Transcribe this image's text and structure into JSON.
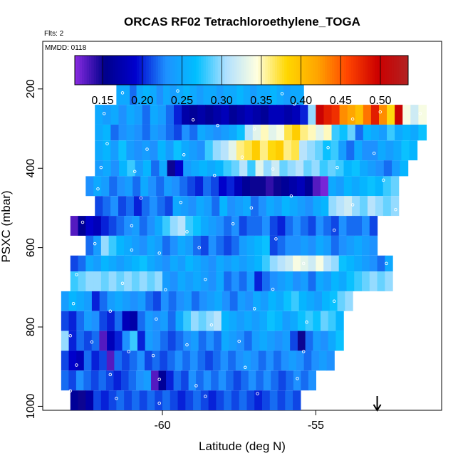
{
  "chart_data": {
    "type": "heatmap",
    "title": "ORCAS RF02 Tetrachloroethylene_TOGA",
    "note_flts": "Flts: 2",
    "note_mmdd": "MMDD: 0118",
    "xlabel": "Latitude (deg N)",
    "ylabel": "PSXC (mbar)",
    "xlim": [
      -63.9,
      -50.9
    ],
    "ylim": [
      1010,
      80
    ],
    "x_ticks": [
      -60,
      -55
    ],
    "x_tick_labels": [
      "-60",
      "-55"
    ],
    "y_ticks": [
      200,
      400,
      600,
      800,
      1000
    ],
    "y_tick_labels": [
      "200",
      "400",
      "600",
      "800",
      "1000"
    ],
    "colorbar": {
      "min": 0.115,
      "max": 0.535,
      "ticks": [
        0.15,
        0.2,
        0.25,
        0.3,
        0.35,
        0.4,
        0.45,
        0.5
      ],
      "tick_labels": [
        "0.15",
        "0.20",
        "0.25",
        "0.30",
        "0.35",
        "0.40",
        "0.45",
        "0.50"
      ],
      "colors": [
        "#8a2be2",
        "#00008b",
        "#0000cd",
        "#1e90ff",
        "#00bfff",
        "#b0e0ff",
        "#ffffe0",
        "#ffd700",
        "#ffa500",
        "#ff4500",
        "#cc0000",
        "#b22222"
      ]
    },
    "arrow_latitude": -53.0,
    "rows": [
      {
        "p_top": 190,
        "p_bot": 240,
        "lat_start": -61.5,
        "lat_end": -55.4,
        "values": [
          0.25,
          0.25,
          0.22,
          0.25,
          0.26,
          0.25,
          0.23,
          0.25,
          0.24,
          0.25,
          0.26,
          0.25,
          0.24,
          0.25,
          0.25,
          0.24,
          0.25,
          0.25,
          0.26,
          0.25,
          0.24,
          0.25,
          0.25,
          0.26,
          0.25,
          0.24,
          0.25,
          0.25
        ]
      },
      {
        "p_top": 240,
        "p_bot": 290,
        "lat_start": -62.2,
        "lat_end": -51.4,
        "values": [
          0.25,
          0.24,
          0.25,
          0.23,
          0.25,
          0.24,
          0.22,
          0.25,
          0.24,
          0.22,
          0.2,
          0.17,
          0.16,
          0.17,
          0.16,
          0.17,
          0.18,
          0.16,
          0.17,
          0.18,
          0.17,
          0.16,
          0.18,
          0.18,
          0.17,
          0.18,
          0.2,
          0.3,
          0.5,
          0.48,
          0.47,
          0.43,
          0.42,
          0.4,
          0.44,
          0.48,
          0.43,
          0.38,
          0.5,
          0.34,
          0.32,
          0.34
        ]
      },
      {
        "p_top": 290,
        "p_bot": 330,
        "lat_start": -62.2,
        "lat_end": -51.4,
        "values": [
          0.25,
          0.26,
          0.22,
          0.23,
          0.24,
          0.23,
          0.22,
          0.24,
          0.23,
          0.22,
          0.21,
          0.23,
          0.22,
          0.25,
          0.24,
          0.23,
          0.24,
          0.25,
          0.27,
          0.31,
          0.33,
          0.35,
          0.33,
          0.34,
          0.37,
          0.39,
          0.36,
          0.35,
          0.33,
          0.35,
          0.28,
          0.27,
          0.29,
          0.22,
          0.26,
          0.25,
          0.24,
          0.28,
          0.25,
          0.26,
          0.25,
          0.27
        ]
      },
      {
        "p_top": 330,
        "p_bot": 380,
        "lat_start": -62.2,
        "lat_end": -51.7,
        "values": [
          0.25,
          0.26,
          0.24,
          0.27,
          0.24,
          0.23,
          0.24,
          0.23,
          0.26,
          0.24,
          0.27,
          0.25,
          0.24,
          0.23,
          0.28,
          0.3,
          0.31,
          0.33,
          0.36,
          0.37,
          0.39,
          0.36,
          0.38,
          0.39,
          0.36,
          0.37,
          0.31,
          0.3,
          0.29,
          0.27,
          0.28,
          0.24,
          0.22,
          0.25,
          0.23,
          0.23,
          0.25,
          0.24,
          0.25,
          0.27,
          0.26
        ]
      },
      {
        "p_top": 380,
        "p_bot": 420,
        "lat_start": -62.2,
        "lat_end": -52.0,
        "values": [
          0.24,
          0.25,
          0.23,
          0.26,
          0.28,
          0.24,
          0.26,
          0.22,
          0.25,
          0.15,
          0.19,
          0.24,
          0.25,
          0.26,
          0.25,
          0.26,
          0.28,
          0.29,
          0.31,
          0.28,
          0.33,
          0.3,
          0.32,
          0.29,
          0.3,
          0.31,
          0.29,
          0.3,
          0.28,
          0.29,
          0.28,
          0.26,
          0.27,
          0.25,
          0.24,
          0.23,
          0.22,
          0.24,
          0.26
        ]
      },
      {
        "p_top": 420,
        "p_bot": 470,
        "lat_start": -62.5,
        "lat_end": -52.3,
        "values": [
          0.23,
          0.25,
          0.24,
          0.22,
          0.23,
          0.24,
          0.22,
          0.25,
          0.23,
          0.22,
          0.24,
          0.23,
          0.22,
          0.21,
          0.2,
          0.22,
          0.21,
          0.19,
          0.2,
          0.18,
          0.16,
          0.15,
          0.15,
          0.14,
          0.15,
          0.16,
          0.17,
          0.18,
          0.16,
          0.13,
          0.12,
          0.25,
          0.24,
          0.26,
          0.25,
          0.26,
          0.27,
          0.26,
          0.28,
          0.29
        ]
      },
      {
        "p_top": 470,
        "p_bot": 520,
        "lat_start": -62.2,
        "lat_end": -52.3,
        "values": [
          0.21,
          0.22,
          0.23,
          0.21,
          0.22,
          0.2,
          0.22,
          0.23,
          0.22,
          0.21,
          0.25,
          0.24,
          0.23,
          0.25,
          0.24,
          0.22,
          0.26,
          0.23,
          0.24,
          0.25,
          0.22,
          0.23,
          0.25,
          0.24,
          0.26,
          0.25,
          0.24,
          0.23,
          0.25,
          0.26,
          0.3,
          0.31,
          0.32,
          0.3,
          0.29,
          0.31,
          0.3,
          0.29,
          0.3
        ]
      },
      {
        "p_top": 520,
        "p_bot": 570,
        "lat_start": -63.0,
        "lat_end": -53.0,
        "values": [
          0.13,
          0.16,
          0.19,
          0.18,
          0.2,
          0.21,
          0.22,
          0.23,
          0.24,
          0.22,
          0.23,
          0.25,
          0.28,
          0.3,
          0.31,
          0.28,
          0.27,
          0.25,
          0.24,
          0.23,
          0.22,
          0.23,
          0.21,
          0.22,
          0.22,
          0.23,
          0.21,
          0.2,
          0.22,
          0.23,
          0.22,
          0.21,
          0.23,
          0.22,
          0.21,
          0.23,
          0.22,
          0.22,
          0.23,
          0.21
        ]
      },
      {
        "p_top": 570,
        "p_bot": 620,
        "lat_start": -62.5,
        "lat_end": -53.0,
        "values": [
          0.22,
          0.24,
          0.3,
          0.28,
          0.26,
          0.25,
          0.24,
          0.23,
          0.25,
          0.24,
          0.22,
          0.23,
          0.25,
          0.24,
          0.22,
          0.21,
          0.23,
          0.22,
          0.21,
          0.22,
          0.24,
          0.25,
          0.26,
          0.27,
          0.21,
          0.22,
          0.23,
          0.23,
          0.24,
          0.23,
          0.25,
          0.24,
          0.22,
          0.23,
          0.24,
          0.25,
          0.24,
          0.23
        ]
      },
      {
        "p_top": 620,
        "p_bot": 660,
        "lat_start": -63.0,
        "lat_end": -52.5,
        "values": [
          0.21,
          0.22,
          0.25,
          0.24,
          0.26,
          0.25,
          0.24,
          0.25,
          0.26,
          0.27,
          0.25,
          0.24,
          0.23,
          0.25,
          0.24,
          0.26,
          0.25,
          0.24,
          0.23,
          0.25,
          0.24,
          0.25,
          0.24,
          0.25,
          0.26,
          0.28,
          0.3,
          0.31,
          0.32,
          0.34,
          0.33,
          0.32,
          0.34,
          0.31,
          0.3,
          0.27,
          0.26,
          0.25,
          0.24,
          0.23,
          0.22,
          0.25
        ]
      },
      {
        "p_top": 660,
        "p_bot": 710,
        "lat_start": -63.0,
        "lat_end": -52.5,
        "values": [
          0.28,
          0.29,
          0.3,
          0.3,
          0.29,
          0.3,
          0.29,
          0.3,
          0.29,
          0.3,
          0.29,
          0.3,
          0.24,
          0.23,
          0.25,
          0.24,
          0.25,
          0.24,
          0.23,
          0.25,
          0.22,
          0.23,
          0.22,
          0.24,
          0.2,
          0.22,
          0.23,
          0.24,
          0.25,
          0.23,
          0.24,
          0.22,
          0.25,
          0.24,
          0.26,
          0.25,
          0.27,
          0.28,
          0.29,
          0.3,
          0.29,
          0.3
        ]
      },
      {
        "p_top": 710,
        "p_bot": 760,
        "lat_start": -63.3,
        "lat_end": -53.8,
        "values": [
          0.24,
          0.26,
          0.25,
          0.24,
          0.2,
          0.22,
          0.24,
          0.25,
          0.24,
          0.23,
          0.24,
          0.22,
          0.21,
          0.23,
          0.22,
          0.23,
          0.24,
          0.22,
          0.23,
          0.24,
          0.25,
          0.23,
          0.22,
          0.24,
          0.23,
          0.25,
          0.24,
          0.26,
          0.25,
          0.27,
          0.28,
          0.26,
          0.25,
          0.24,
          0.26,
          0.27,
          0.29,
          0.3
        ]
      },
      {
        "p_top": 760,
        "p_bot": 810,
        "lat_start": -63.3,
        "lat_end": -54.1,
        "values": [
          0.21,
          0.2,
          0.22,
          0.24,
          0.23,
          0.21,
          0.2,
          0.22,
          0.18,
          0.17,
          0.22,
          0.24,
          0.23,
          0.24,
          0.22,
          0.25,
          0.28,
          0.3,
          0.29,
          0.3,
          0.31,
          0.26,
          0.25,
          0.24,
          0.25,
          0.24,
          0.25,
          0.27,
          0.26,
          0.24,
          0.25,
          0.27,
          0.28,
          0.27,
          0.29,
          0.28,
          0.26
        ]
      },
      {
        "p_top": 810,
        "p_bot": 860,
        "lat_start": -63.3,
        "lat_end": -54.1,
        "values": [
          0.3,
          0.2,
          0.22,
          0.21,
          0.22,
          0.13,
          0.18,
          0.2,
          0.23,
          0.28,
          0.2,
          0.24,
          0.23,
          0.22,
          0.21,
          0.22,
          0.23,
          0.24,
          0.22,
          0.23,
          0.22,
          0.25,
          0.24,
          0.23,
          0.22,
          0.24,
          0.25,
          0.24,
          0.23,
          0.24,
          0.21,
          0.15,
          0.22,
          0.24,
          0.23,
          0.25,
          0.27
        ]
      },
      {
        "p_top": 860,
        "p_bot": 910,
        "lat_start": -63.3,
        "lat_end": -54.4,
        "values": [
          0.21,
          0.19,
          0.18,
          0.22,
          0.2,
          0.21,
          0.13,
          0.22,
          0.21,
          0.22,
          0.23,
          0.21,
          0.22,
          0.21,
          0.22,
          0.23,
          0.22,
          0.23,
          0.22,
          0.21,
          0.22,
          0.23,
          0.22,
          0.23,
          0.24,
          0.23,
          0.22,
          0.23,
          0.22,
          0.23,
          0.24,
          0.23,
          0.22,
          0.23,
          0.24,
          0.23
        ]
      },
      {
        "p_top": 910,
        "p_bot": 960,
        "lat_start": -63.3,
        "lat_end": -55.0,
        "values": [
          0.22,
          0.21,
          0.23,
          0.22,
          0.21,
          0.22,
          0.21,
          0.2,
          0.21,
          0.22,
          0.23,
          0.24,
          0.13,
          0.16,
          0.2,
          0.22,
          0.21,
          0.23,
          0.22,
          0.23,
          0.22,
          0.23,
          0.22,
          0.21,
          0.22,
          0.23,
          0.22,
          0.23,
          0.22,
          0.21,
          0.22,
          0.23,
          0.22,
          0.23
        ]
      },
      {
        "p_top": 960,
        "p_bot": 1010,
        "lat_start": -63.0,
        "lat_end": -55.5,
        "values": [
          0.16,
          0.15,
          0.17,
          0.21,
          0.2,
          0.21,
          0.22,
          0.21,
          0.22,
          0.21,
          0.22,
          0.21,
          0.22,
          0.21,
          0.2,
          0.21,
          0.22,
          0.21,
          0.2,
          0.21,
          0.22,
          0.21,
          0.22,
          0.21,
          0.2,
          0.21,
          0.22,
          0.21,
          0.22,
          0.21
        ]
      }
    ],
    "sample_points": [
      [
        -61.3,
        210
      ],
      [
        -59.5,
        205
      ],
      [
        -56.1,
        212
      ],
      [
        -55.7,
        238
      ],
      [
        -61.9,
        262
      ],
      [
        -59.0,
        278
      ],
      [
        -58.2,
        292
      ],
      [
        -57.0,
        301
      ],
      [
        -53.8,
        276
      ],
      [
        -52.9,
        258
      ],
      [
        -51.6,
        262
      ],
      [
        -61.8,
        338
      ],
      [
        -60.5,
        352
      ],
      [
        -59.3,
        366
      ],
      [
        -57.4,
        372
      ],
      [
        -54.6,
        348
      ],
      [
        -53.1,
        362
      ],
      [
        -62.0,
        398
      ],
      [
        -60.9,
        408
      ],
      [
        -58.3,
        418
      ],
      [
        -56.4,
        402
      ],
      [
        -54.3,
        398
      ],
      [
        -52.8,
        430
      ],
      [
        -62.1,
        452
      ],
      [
        -60.7,
        475
      ],
      [
        -59.4,
        486
      ],
      [
        -57.1,
        500
      ],
      [
        -55.8,
        470
      ],
      [
        -53.8,
        492
      ],
      [
        -52.4,
        504
      ],
      [
        -62.6,
        536
      ],
      [
        -61.0,
        545
      ],
      [
        -59.2,
        560
      ],
      [
        -57.7,
        540
      ],
      [
        -56.3,
        578
      ],
      [
        -54.4,
        556
      ],
      [
        -62.2,
        590
      ],
      [
        -61.0,
        606
      ],
      [
        -60.1,
        614
      ],
      [
        -58.8,
        600
      ],
      [
        -55.4,
        640
      ],
      [
        -52.7,
        640
      ],
      [
        -62.8,
        668
      ],
      [
        -61.3,
        690
      ],
      [
        -59.9,
        706
      ],
      [
        -58.6,
        680
      ],
      [
        -56.4,
        705
      ],
      [
        -54.4,
        735
      ],
      [
        -62.9,
        741
      ],
      [
        -61.7,
        760
      ],
      [
        -60.2,
        780
      ],
      [
        -58.4,
        795
      ],
      [
        -57.0,
        754
      ],
      [
        -55.3,
        788
      ],
      [
        -53.9,
        808
      ],
      [
        -63.0,
        822
      ],
      [
        -62.3,
        838
      ],
      [
        -61.1,
        862
      ],
      [
        -60.3,
        872
      ],
      [
        -59.2,
        845
      ],
      [
        -57.5,
        836
      ],
      [
        -55.4,
        862
      ],
      [
        -54.3,
        880
      ],
      [
        -62.8,
        896
      ],
      [
        -61.7,
        920
      ],
      [
        -60.1,
        932
      ],
      [
        -58.9,
        948
      ],
      [
        -57.3,
        902
      ],
      [
        -55.6,
        930
      ],
      [
        -63.0,
        961
      ],
      [
        -61.5,
        980
      ],
      [
        -60.1,
        992
      ],
      [
        -58.6,
        975
      ],
      [
        -56.9,
        968
      ]
    ]
  }
}
